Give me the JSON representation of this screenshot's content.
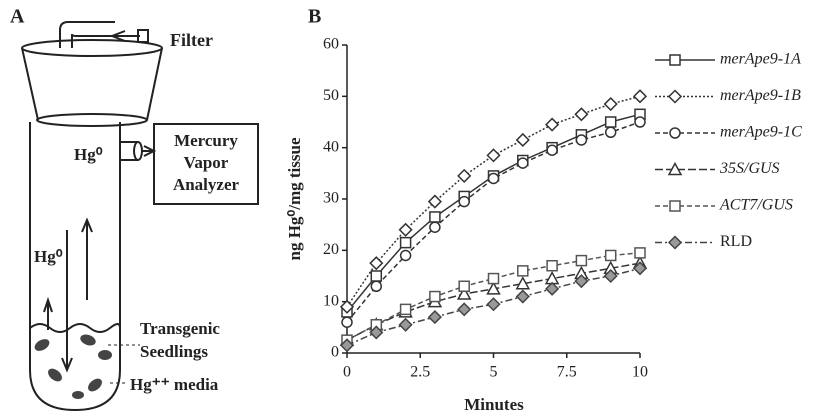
{
  "panel_a": {
    "label": "A",
    "filter": "Filter",
    "analyzer": [
      "Mercury",
      "Vapor",
      "Analyzer"
    ],
    "gas_upper": "Hg⁰",
    "gas_lower": "Hg⁰",
    "seedlings": [
      "Transgenic",
      "Seedlings"
    ],
    "media": "Hg⁺⁺ media"
  },
  "chart_data": {
    "type": "line",
    "panel_label": "B",
    "x_label": "Minutes",
    "y_label": "ng Hg⁰/mg tissue",
    "x": [
      0,
      1,
      2,
      3,
      4,
      5,
      6,
      7,
      8,
      9,
      10
    ],
    "xlim": [
      0,
      10
    ],
    "xticks": [
      0,
      2.5,
      5,
      7.5,
      10
    ],
    "ylim": [
      0,
      60
    ],
    "yticks": [
      0,
      10,
      20,
      30,
      40,
      50,
      60
    ],
    "series": [
      {
        "name": "merApe9-1A",
        "color": "#333333",
        "marker": "square",
        "dash": "solid",
        "italic": true,
        "values": [
          8,
          15,
          21.5,
          26.5,
          30.5,
          34.5,
          37.5,
          40,
          42.5,
          45,
          46.5
        ]
      },
      {
        "name": "merApe9-1B",
        "color": "#333333",
        "marker": "diamond",
        "dash": "dotted",
        "italic": true,
        "values": [
          9,
          17.5,
          24,
          29.5,
          34.5,
          38.5,
          41.5,
          44.5,
          46.5,
          48.5,
          50
        ]
      },
      {
        "name": "merApe9-1C",
        "color": "#333333",
        "marker": "circle",
        "dash": "dashed",
        "italic": true,
        "values": [
          6,
          13,
          19,
          24.5,
          29.5,
          34,
          37,
          39.5,
          41.5,
          43,
          45
        ]
      },
      {
        "name": "35S/GUS",
        "color": "#333333",
        "marker": "triangle",
        "dash": "longdash",
        "italic": true,
        "values": [
          2.5,
          5.5,
          8,
          10,
          11.5,
          12.5,
          13.5,
          14.5,
          15.5,
          16.5,
          17.5
        ]
      },
      {
        "name": "ACT7/GUS",
        "color": "#555555",
        "marker": "boxsquare",
        "dash": "dashed",
        "italic": true,
        "values": [
          2.5,
          5.5,
          8.5,
          11,
          13,
          14.5,
          16,
          17,
          18,
          19,
          19.5
        ]
      },
      {
        "name": "RLD",
        "color": "#444444",
        "marker": "filldiamond",
        "dash": "dashdot",
        "italic": false,
        "values": [
          1.5,
          4,
          5.5,
          7,
          8.5,
          9.5,
          11,
          12.5,
          14,
          15,
          16.5
        ]
      }
    ]
  }
}
